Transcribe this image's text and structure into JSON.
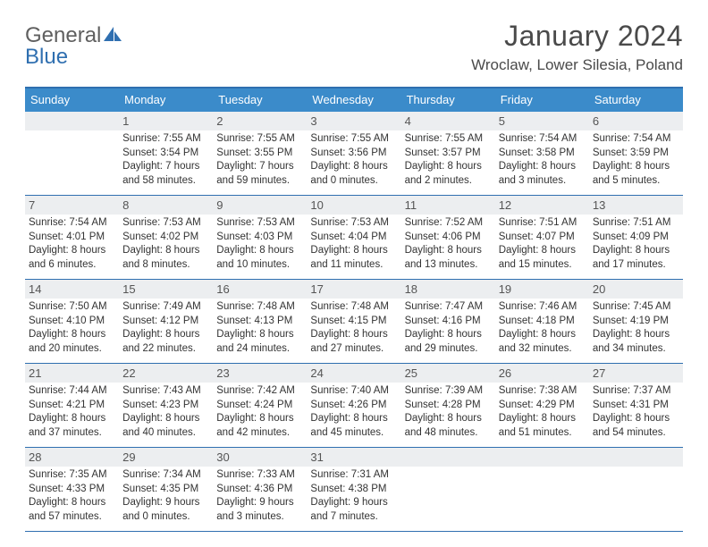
{
  "brand": {
    "name_a": "General",
    "name_b": "Blue"
  },
  "title": "January 2024",
  "location": "Wroclaw, Lower Silesia, Poland",
  "colors": {
    "header_bg": "#3b8bca",
    "rule": "#2f6fb0",
    "daynum_bg": "#eceef0",
    "text": "#333333",
    "title_text": "#4a4a4a"
  },
  "dayNames": [
    "Sunday",
    "Monday",
    "Tuesday",
    "Wednesday",
    "Thursday",
    "Friday",
    "Saturday"
  ],
  "weeks": [
    [
      null,
      {
        "d": "1",
        "sr": "7:55 AM",
        "ss": "3:54 PM",
        "dl": "7 hours and 58 minutes."
      },
      {
        "d": "2",
        "sr": "7:55 AM",
        "ss": "3:55 PM",
        "dl": "7 hours and 59 minutes."
      },
      {
        "d": "3",
        "sr": "7:55 AM",
        "ss": "3:56 PM",
        "dl": "8 hours and 0 minutes."
      },
      {
        "d": "4",
        "sr": "7:55 AM",
        "ss": "3:57 PM",
        "dl": "8 hours and 2 minutes."
      },
      {
        "d": "5",
        "sr": "7:54 AM",
        "ss": "3:58 PM",
        "dl": "8 hours and 3 minutes."
      },
      {
        "d": "6",
        "sr": "7:54 AM",
        "ss": "3:59 PM",
        "dl": "8 hours and 5 minutes."
      }
    ],
    [
      {
        "d": "7",
        "sr": "7:54 AM",
        "ss": "4:01 PM",
        "dl": "8 hours and 6 minutes."
      },
      {
        "d": "8",
        "sr": "7:53 AM",
        "ss": "4:02 PM",
        "dl": "8 hours and 8 minutes."
      },
      {
        "d": "9",
        "sr": "7:53 AM",
        "ss": "4:03 PM",
        "dl": "8 hours and 10 minutes."
      },
      {
        "d": "10",
        "sr": "7:53 AM",
        "ss": "4:04 PM",
        "dl": "8 hours and 11 minutes."
      },
      {
        "d": "11",
        "sr": "7:52 AM",
        "ss": "4:06 PM",
        "dl": "8 hours and 13 minutes."
      },
      {
        "d": "12",
        "sr": "7:51 AM",
        "ss": "4:07 PM",
        "dl": "8 hours and 15 minutes."
      },
      {
        "d": "13",
        "sr": "7:51 AM",
        "ss": "4:09 PM",
        "dl": "8 hours and 17 minutes."
      }
    ],
    [
      {
        "d": "14",
        "sr": "7:50 AM",
        "ss": "4:10 PM",
        "dl": "8 hours and 20 minutes."
      },
      {
        "d": "15",
        "sr": "7:49 AM",
        "ss": "4:12 PM",
        "dl": "8 hours and 22 minutes."
      },
      {
        "d": "16",
        "sr": "7:48 AM",
        "ss": "4:13 PM",
        "dl": "8 hours and 24 minutes."
      },
      {
        "d": "17",
        "sr": "7:48 AM",
        "ss": "4:15 PM",
        "dl": "8 hours and 27 minutes."
      },
      {
        "d": "18",
        "sr": "7:47 AM",
        "ss": "4:16 PM",
        "dl": "8 hours and 29 minutes."
      },
      {
        "d": "19",
        "sr": "7:46 AM",
        "ss": "4:18 PM",
        "dl": "8 hours and 32 minutes."
      },
      {
        "d": "20",
        "sr": "7:45 AM",
        "ss": "4:19 PM",
        "dl": "8 hours and 34 minutes."
      }
    ],
    [
      {
        "d": "21",
        "sr": "7:44 AM",
        "ss": "4:21 PM",
        "dl": "8 hours and 37 minutes."
      },
      {
        "d": "22",
        "sr": "7:43 AM",
        "ss": "4:23 PM",
        "dl": "8 hours and 40 minutes."
      },
      {
        "d": "23",
        "sr": "7:42 AM",
        "ss": "4:24 PM",
        "dl": "8 hours and 42 minutes."
      },
      {
        "d": "24",
        "sr": "7:40 AM",
        "ss": "4:26 PM",
        "dl": "8 hours and 45 minutes."
      },
      {
        "d": "25",
        "sr": "7:39 AM",
        "ss": "4:28 PM",
        "dl": "8 hours and 48 minutes."
      },
      {
        "d": "26",
        "sr": "7:38 AM",
        "ss": "4:29 PM",
        "dl": "8 hours and 51 minutes."
      },
      {
        "d": "27",
        "sr": "7:37 AM",
        "ss": "4:31 PM",
        "dl": "8 hours and 54 minutes."
      }
    ],
    [
      {
        "d": "28",
        "sr": "7:35 AM",
        "ss": "4:33 PM",
        "dl": "8 hours and 57 minutes."
      },
      {
        "d": "29",
        "sr": "7:34 AM",
        "ss": "4:35 PM",
        "dl": "9 hours and 0 minutes."
      },
      {
        "d": "30",
        "sr": "7:33 AM",
        "ss": "4:36 PM",
        "dl": "9 hours and 3 minutes."
      },
      {
        "d": "31",
        "sr": "7:31 AM",
        "ss": "4:38 PM",
        "dl": "9 hours and 7 minutes."
      },
      null,
      null,
      null
    ]
  ],
  "labels": {
    "sunrise": "Sunrise:",
    "sunset": "Sunset:",
    "daylight": "Daylight:"
  }
}
